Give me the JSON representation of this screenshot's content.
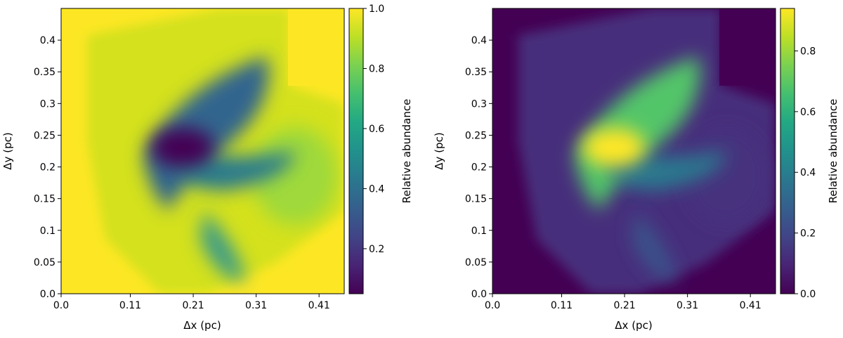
{
  "chart_data": [
    {
      "type": "heatmap",
      "xlabel": "Δx (pc)",
      "ylabel": "Δy (pc)",
      "colorbar_label": "Relative abundance",
      "xlim": [
        0,
        0.45
      ],
      "ylim": [
        0,
        0.45
      ],
      "x_ticks": [
        0.0,
        0.11,
        0.21,
        0.31,
        0.41
      ],
      "x_tick_labels": [
        "0.0",
        "0.11",
        "0.21",
        "0.31",
        "0.41"
      ],
      "y_ticks": [
        0.0,
        0.05,
        0.1,
        0.15,
        0.2,
        0.25,
        0.3,
        0.35,
        0.4
      ],
      "y_tick_labels": [
        "0.0",
        "0.05",
        "0.1",
        "0.15",
        "0.2",
        "0.25",
        "0.3",
        "0.35",
        "0.4"
      ],
      "colorbar_range": [
        0.05,
        1.0
      ],
      "colorbar_ticks": [
        0.2,
        0.4,
        0.6,
        0.8,
        1.0
      ],
      "colorbar_tick_labels": [
        "0.2",
        "0.4",
        "0.6",
        "0.8",
        "1.0"
      ],
      "colormap": "viridis",
      "background_value": 1.0,
      "features": [
        {
          "x": 0.205,
          "y": 0.215,
          "value": 0.05
        },
        {
          "x": 0.27,
          "y": 0.3,
          "value": 0.3
        },
        {
          "x": 0.3,
          "y": 0.16,
          "value": 0.45
        }
      ]
    },
    {
      "type": "heatmap",
      "xlabel": "Δx (pc)",
      "ylabel": "Δy (pc)",
      "colorbar_label": "Relative abundance",
      "xlim": [
        0,
        0.45
      ],
      "ylim": [
        0,
        0.45
      ],
      "x_ticks": [
        0.0,
        0.11,
        0.21,
        0.31,
        0.41
      ],
      "x_tick_labels": [
        "0.0",
        "0.11",
        "0.21",
        "0.31",
        "0.41"
      ],
      "y_ticks": [
        0.0,
        0.05,
        0.1,
        0.15,
        0.2,
        0.25,
        0.3,
        0.35,
        0.4
      ],
      "y_tick_labels": [
        "0.0",
        "0.05",
        "0.1",
        "0.15",
        "0.2",
        "0.25",
        "0.3",
        "0.35",
        "0.4"
      ],
      "colorbar_range": [
        0.0,
        0.94
      ],
      "colorbar_ticks": [
        0.0,
        0.2,
        0.4,
        0.6,
        0.8
      ],
      "colorbar_tick_labels": [
        "0.0",
        "0.2",
        "0.4",
        "0.6",
        "0.8"
      ],
      "colormap": "viridis",
      "background_value": 0.0,
      "features": [
        {
          "x": 0.21,
          "y": 0.22,
          "value": 0.94
        },
        {
          "x": 0.29,
          "y": 0.3,
          "value": 0.72
        },
        {
          "x": 0.3,
          "y": 0.16,
          "value": 0.45
        }
      ]
    }
  ]
}
